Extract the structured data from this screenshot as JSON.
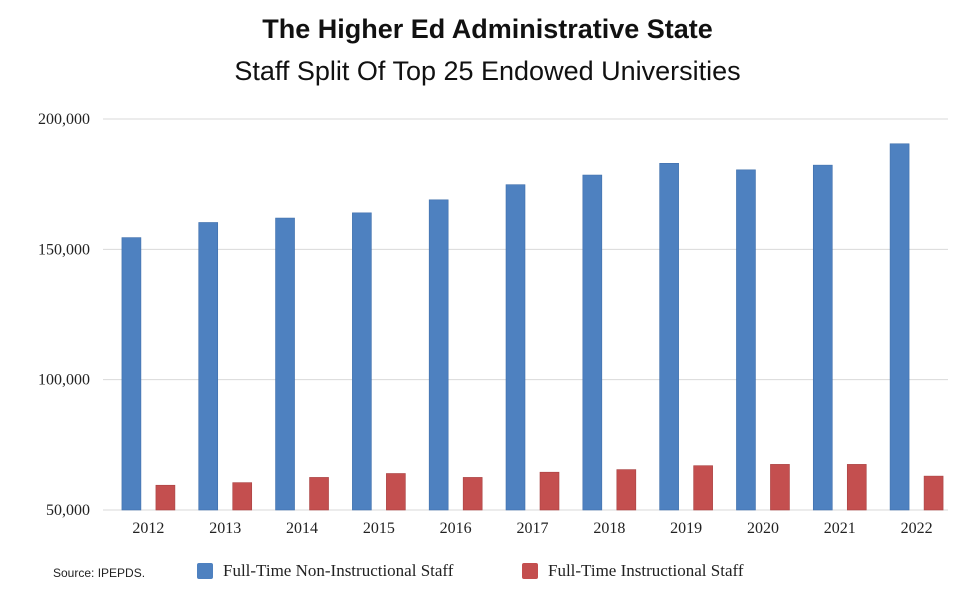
{
  "source": "Source: IPEPDS.",
  "colors": {
    "series1": "#4e81c0",
    "series2": "#c44f4f",
    "grid": "#d9d9d9"
  },
  "chart_data": {
    "type": "bar",
    "title": "The Higher Ed Administrative State",
    "subtitle": "Staff Split Of Top 25 Endowed Universities",
    "xlabel": "",
    "ylabel": "",
    "ylim": [
      50000,
      200000
    ],
    "yticks": [
      50000,
      100000,
      150000,
      200000
    ],
    "ytick_labels": [
      "50,000",
      "100,000",
      "150,000",
      "200,000"
    ],
    "grid": true,
    "legend_position": "bottom",
    "categories": [
      "2012",
      "2013",
      "2014",
      "2015",
      "2016",
      "2017",
      "2018",
      "2019",
      "2020",
      "2021",
      "2022"
    ],
    "series": [
      {
        "name": "Full-Time Non-Instructional Staff",
        "values": [
          154500,
          160300,
          162000,
          164000,
          169000,
          174800,
          178500,
          183000,
          180500,
          182300,
          190500
        ]
      },
      {
        "name": "Full-Time Instructional Staff",
        "values": [
          59500,
          60500,
          62500,
          64000,
          62500,
          64500,
          65500,
          67000,
          67500,
          67500,
          63000
        ]
      }
    ]
  }
}
